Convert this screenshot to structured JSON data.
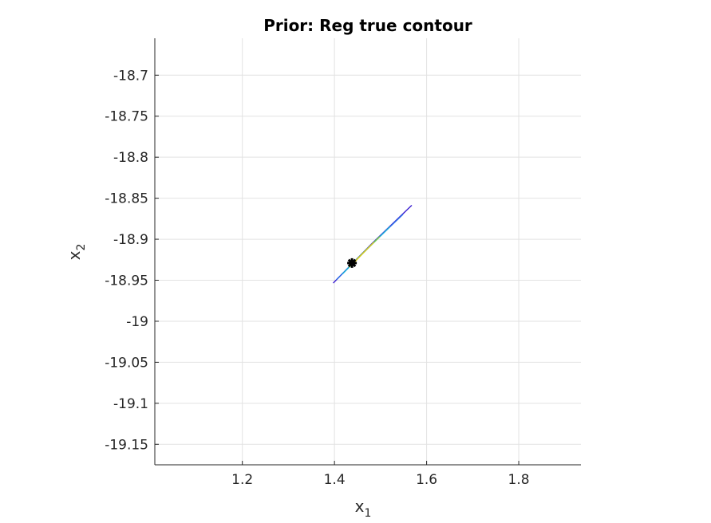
{
  "chart_data": {
    "type": "contour",
    "title": "Prior: Reg true contour",
    "xlabel": {
      "base": "x",
      "sub": "1"
    },
    "ylabel": {
      "base": "x",
      "sub": "2"
    },
    "xlim": [
      1.01,
      1.935
    ],
    "ylim": [
      -19.175,
      -18.655
    ],
    "xticks": [
      1.2,
      1.4,
      1.6,
      1.8
    ],
    "xtick_labels": [
      "1.2",
      "1.4",
      "1.6",
      "1.8"
    ],
    "yticks": [
      -18.7,
      -18.75,
      -18.8,
      -18.85,
      -18.9,
      -18.95,
      -19,
      -19.05,
      -19.1,
      -19.15
    ],
    "ytick_labels": [
      "-18.7",
      "-18.75",
      "-18.8",
      "-18.85",
      "-18.9",
      "-18.95",
      "-19",
      "-19.05",
      "-19.1",
      "-19.15"
    ],
    "grid": true,
    "contours": [
      {
        "color": "#3b1fd0",
        "points": [
          [
            1.398,
            -18.953
          ],
          [
            1.48,
            -18.906
          ],
          [
            1.567,
            -18.859
          ]
        ]
      },
      {
        "color": "#2a6ee8",
        "points": [
          [
            1.405,
            -18.949
          ],
          [
            1.47,
            -18.912
          ],
          [
            1.548,
            -18.87
          ]
        ]
      },
      {
        "color": "#19b0d8",
        "points": [
          [
            1.418,
            -18.942
          ],
          [
            1.46,
            -18.918
          ],
          [
            1.52,
            -18.885
          ]
        ]
      },
      {
        "color": "#7fcf3a",
        "points": [
          [
            1.432,
            -18.934
          ],
          [
            1.465,
            -18.915
          ],
          [
            1.498,
            -18.897
          ]
        ]
      },
      {
        "color": "#d8c91e",
        "points": [
          [
            1.44,
            -18.93
          ],
          [
            1.462,
            -18.917
          ],
          [
            1.485,
            -18.904
          ]
        ]
      }
    ],
    "marker": {
      "x": 1.438,
      "y": -18.929,
      "symbol": "*",
      "color": "#000000"
    }
  }
}
